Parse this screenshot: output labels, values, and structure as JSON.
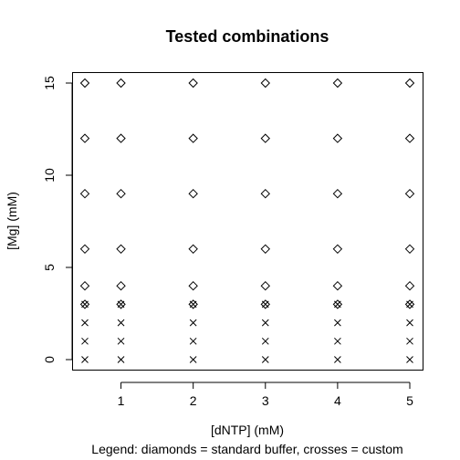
{
  "chart_data": {
    "type": "scatter",
    "title": "Tested combinations",
    "xlabel": "[dNTP] (mM)",
    "ylabel": "[Mg] (mM)",
    "subtitle": "Legend: diamonds = standard buffer, crosses = custom",
    "xlim": [
      0.5,
      5
    ],
    "ylim": [
      0,
      15
    ],
    "xticks": [
      "1",
      "2",
      "3",
      "4",
      "5"
    ],
    "yticks": [
      "0",
      "5",
      "10",
      "15"
    ],
    "grid": false,
    "series": [
      {
        "marker": "diamond",
        "x": [
          0.5,
          0.5,
          0.5,
          0.5,
          0.5,
          0.5,
          1,
          1,
          1,
          1,
          1,
          1,
          2,
          2,
          2,
          2,
          2,
          2,
          3,
          3,
          3,
          3,
          3,
          3,
          4,
          4,
          4,
          4,
          4,
          4,
          5,
          5,
          5,
          5,
          5,
          5
        ],
        "y": [
          3,
          4,
          6,
          9,
          12,
          15,
          3,
          4,
          6,
          9,
          12,
          15,
          3,
          4,
          6,
          9,
          12,
          15,
          3,
          4,
          6,
          9,
          12,
          15,
          3,
          4,
          6,
          9,
          12,
          15,
          3,
          4,
          6,
          9,
          12,
          15
        ]
      },
      {
        "marker": "cross",
        "x": [
          0.5,
          0.5,
          0.5,
          0.5,
          1,
          1,
          1,
          1,
          2,
          2,
          2,
          2,
          3,
          3,
          3,
          3,
          4,
          4,
          4,
          4,
          5,
          5,
          5,
          5
        ],
        "y": [
          0,
          1,
          2,
          3,
          0,
          1,
          2,
          3,
          0,
          1,
          2,
          3,
          0,
          1,
          2,
          3,
          0,
          1,
          2,
          3,
          0,
          1,
          2,
          3
        ]
      }
    ]
  }
}
